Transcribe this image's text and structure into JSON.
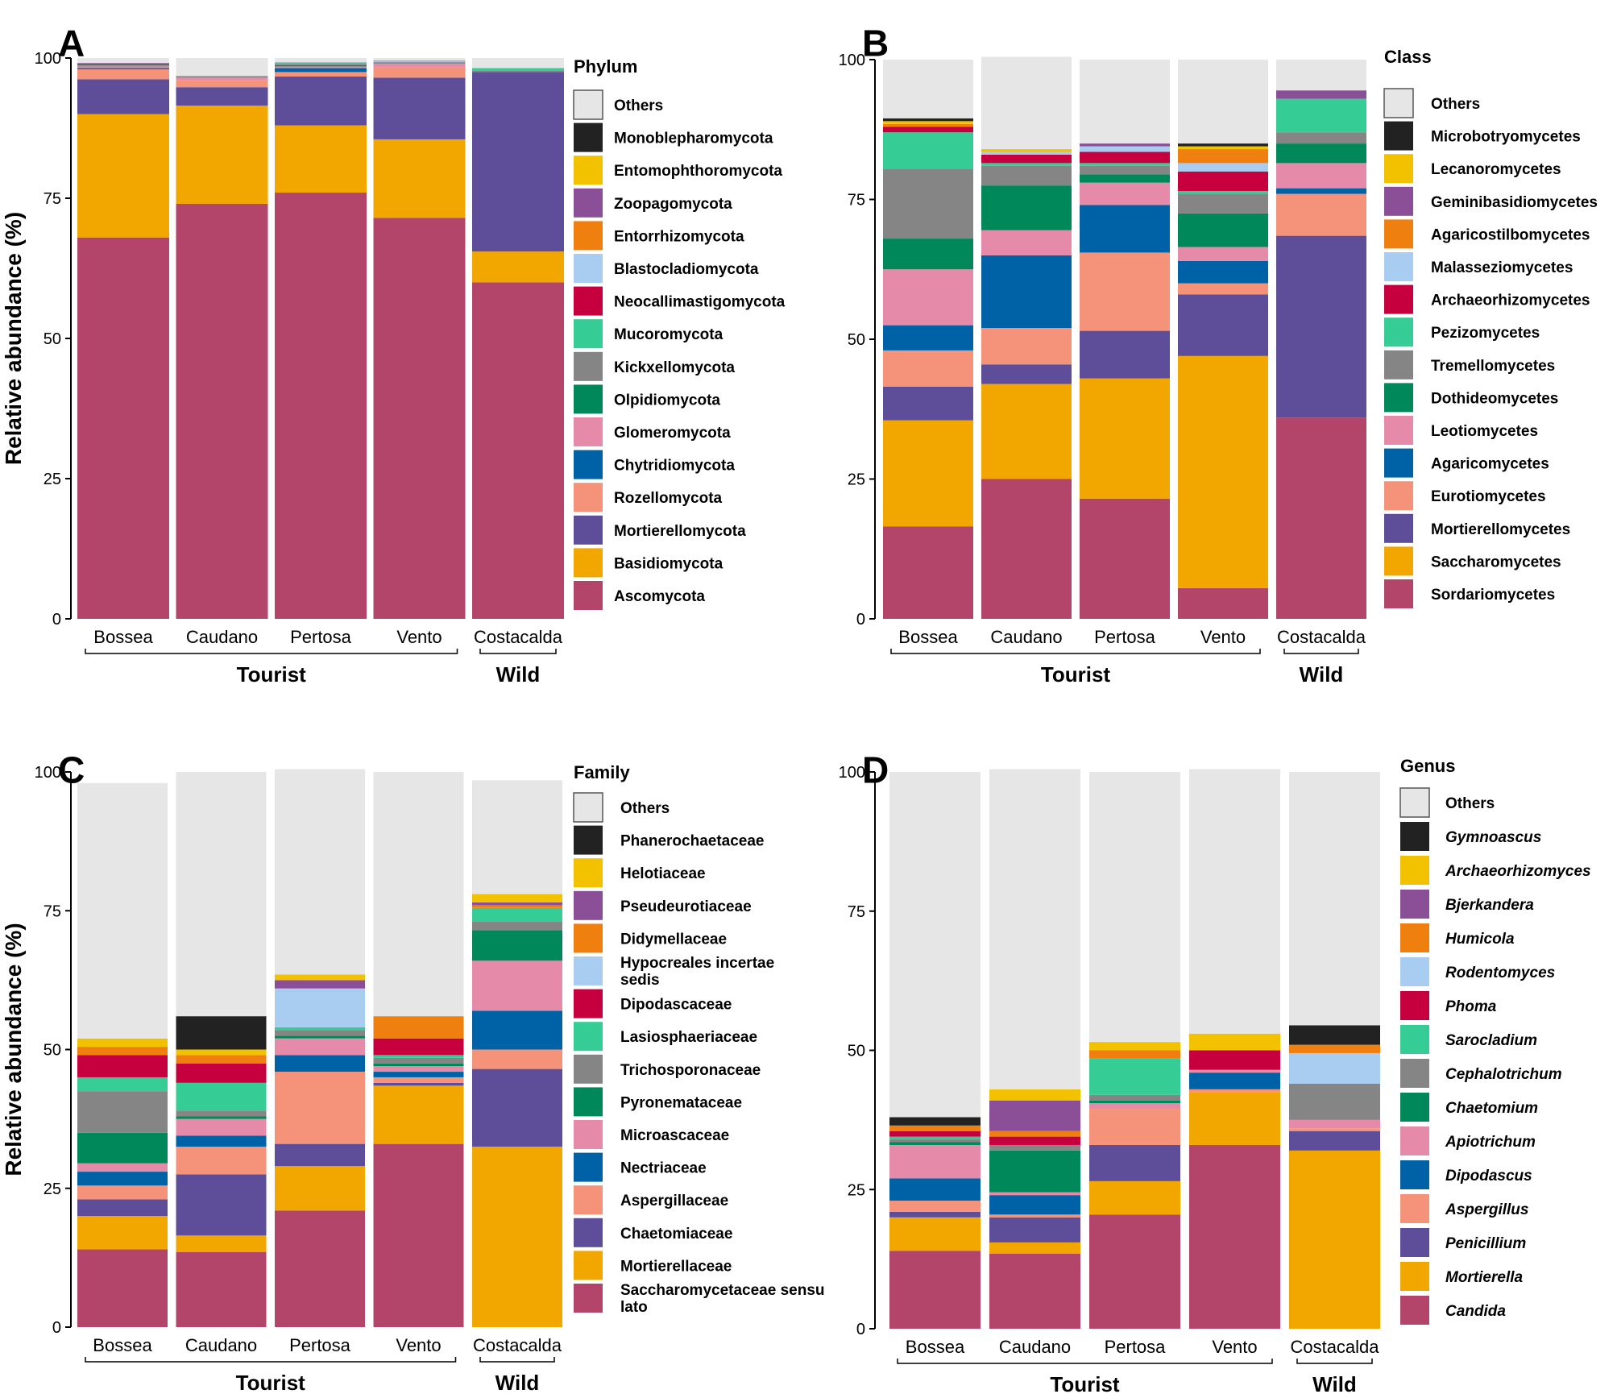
{
  "figure_description": "Relative abundance of fungal taxa in tourist and wild caves",
  "colors": {
    "Others": "#e6e6e6",
    "black": "#222222",
    "yellow": "#f2c200",
    "purple": "#8a4f96",
    "orange": "#ef8010",
    "lightblue": "#a8cdf0",
    "crimson": "#c6003e",
    "mint": "#36cc96",
    "gray": "#858585",
    "green": "#00875a",
    "pink": "#e58aa8",
    "blue": "#0062a6",
    "salmon": "#f5937a",
    "violet": "#5e4e9a",
    "gold": "#f2a600",
    "rose": "#b3456b"
  },
  "chart_data": [
    {
      "panel": "A",
      "type": "bar",
      "stacked": true,
      "categories": [
        "Bossea",
        "Caudano",
        "Pertosa",
        "Vento",
        "Costacalda"
      ],
      "groups": [
        {
          "name": "Tourist",
          "categories": [
            "Bossea",
            "Caudano",
            "Pertosa",
            "Vento"
          ]
        },
        {
          "name": "Wild",
          "categories": [
            "Costacalda"
          ]
        }
      ],
      "ylabel": "Relative abundance (%)",
      "ylim": [
        0,
        100
      ],
      "yticks": [
        0,
        25,
        50,
        75,
        100
      ],
      "legend_title": "Phylum",
      "legend_italic": false,
      "series": [
        {
          "name": "Ascomycota",
          "color": "rose",
          "values": [
            68,
            74,
            76,
            71.5,
            60
          ]
        },
        {
          "name": "Basidiomycota",
          "color": "gold",
          "values": [
            22,
            17.5,
            12,
            14,
            5.5
          ]
        },
        {
          "name": "Mortierellomycota",
          "color": "violet",
          "values": [
            6.2,
            3.3,
            8.7,
            11,
            32
          ]
        },
        {
          "name": "Rozellomycota",
          "color": "salmon",
          "values": [
            1.8,
            1.3,
            0.8,
            1.8,
            0
          ]
        },
        {
          "name": "Chytridiomycota",
          "color": "blue",
          "values": [
            0.2,
            0,
            0.7,
            0,
            0
          ]
        },
        {
          "name": "Glomeromycota",
          "color": "pink",
          "values": [
            0.3,
            0.4,
            0.3,
            0.7,
            0
          ]
        },
        {
          "name": "Olpidiomycota",
          "color": "green",
          "values": [
            0,
            0,
            0.2,
            0,
            0
          ]
        },
        {
          "name": "Kickxellomycota",
          "color": "gray",
          "values": [
            0.2,
            0.3,
            0.2,
            0.2,
            0.2
          ]
        },
        {
          "name": "Mucoromycota",
          "color": "mint",
          "values": [
            0.1,
            0,
            0.2,
            0.1,
            0.5
          ]
        },
        {
          "name": "Neocallimastigomycota",
          "color": "crimson",
          "values": [
            0.2,
            0,
            0,
            0,
            0
          ]
        },
        {
          "name": "Blastocladiomycota",
          "color": "lightblue",
          "values": [
            0,
            0,
            0,
            0.1,
            0
          ]
        },
        {
          "name": "Entorrhizomycota",
          "color": "orange",
          "values": [
            0,
            0,
            0,
            0,
            0
          ]
        },
        {
          "name": "Zoopagomycota",
          "color": "purple",
          "values": [
            0.1,
            0,
            0.1,
            0.1,
            0
          ]
        },
        {
          "name": "Entomophthoromycota",
          "color": "yellow",
          "values": [
            0,
            0,
            0,
            0,
            0
          ]
        },
        {
          "name": "Monoblepharomycota",
          "color": "black",
          "values": [
            0,
            0,
            0,
            0,
            0
          ]
        },
        {
          "name": "Others",
          "color": "Others",
          "values": [
            0.9,
            3.2,
            0.8,
            0.5,
            1.8
          ]
        }
      ]
    },
    {
      "panel": "B",
      "type": "bar",
      "stacked": true,
      "categories": [
        "Bossea",
        "Caudano",
        "Pertosa",
        "Vento",
        "Costacalda"
      ],
      "groups": [
        {
          "name": "Tourist",
          "categories": [
            "Bossea",
            "Caudano",
            "Pertosa",
            "Vento"
          ]
        },
        {
          "name": "Wild",
          "categories": [
            "Costacalda"
          ]
        }
      ],
      "ylabel": "",
      "ylim": [
        0,
        100
      ],
      "yticks": [
        0,
        25,
        50,
        75,
        100
      ],
      "legend_title": "Class",
      "legend_italic": false,
      "series": [
        {
          "name": "Sordariomycetes",
          "color": "rose",
          "values": [
            16.5,
            25,
            21.5,
            5.5,
            36
          ]
        },
        {
          "name": "Saccharomycetes",
          "color": "gold",
          "values": [
            19,
            17,
            21.5,
            41.5,
            0
          ]
        },
        {
          "name": "Mortierellomycetes",
          "color": "violet",
          "values": [
            6,
            3.5,
            8.5,
            11,
            32.5
          ]
        },
        {
          "name": "Eurotiomycetes",
          "color": "salmon",
          "values": [
            6.5,
            6.5,
            14,
            2,
            7.5
          ]
        },
        {
          "name": "Agaricomycetes",
          "color": "blue",
          "values": [
            4.5,
            13,
            8.5,
            4,
            1
          ]
        },
        {
          "name": "Leotiomycetes",
          "color": "pink",
          "values": [
            10,
            4.5,
            4,
            2.5,
            4.5
          ]
        },
        {
          "name": "Dothideomycetes",
          "color": "green",
          "values": [
            5.5,
            8,
            1.5,
            6,
            3.5
          ]
        },
        {
          "name": "Tremellomycetes",
          "color": "gray",
          "values": [
            12.5,
            3.5,
            1.5,
            3.5,
            2
          ]
        },
        {
          "name": "Pezizomycetes",
          "color": "mint",
          "values": [
            6.5,
            0.5,
            0.5,
            0.5,
            6
          ]
        },
        {
          "name": "Archaeorhizomycetes",
          "color": "crimson",
          "values": [
            1,
            1.5,
            2,
            3.5,
            0
          ]
        },
        {
          "name": "Malasseziomycetes",
          "color": "lightblue",
          "values": [
            0,
            0.5,
            1,
            1.5,
            0
          ]
        },
        {
          "name": "Agaricostilbomycetes",
          "color": "orange",
          "values": [
            0.5,
            0,
            0,
            2.5,
            0
          ]
        },
        {
          "name": "Geminibasidiomycetes",
          "color": "purple",
          "values": [
            0,
            0,
            0.5,
            0,
            1.5
          ]
        },
        {
          "name": "Lecanoromycetes",
          "color": "yellow",
          "values": [
            0.5,
            0.5,
            0,
            0.5,
            0
          ]
        },
        {
          "name": "Microbotryomycetes",
          "color": "black",
          "values": [
            0.5,
            0,
            0,
            0.5,
            0
          ]
        },
        {
          "name": "Others",
          "color": "Others",
          "values": [
            10.5,
            16.5,
            15,
            15,
            5.5
          ]
        }
      ]
    },
    {
      "panel": "C",
      "type": "bar",
      "stacked": true,
      "categories": [
        "Bossea",
        "Caudano",
        "Pertosa",
        "Vento",
        "Costacalda"
      ],
      "groups": [
        {
          "name": "Tourist",
          "categories": [
            "Bossea",
            "Caudano",
            "Pertosa",
            "Vento"
          ]
        },
        {
          "name": "Wild",
          "categories": [
            "Costacalda"
          ]
        }
      ],
      "ylabel": "Relative abundance (%)",
      "ylim": [
        0,
        100
      ],
      "yticks": [
        0,
        25,
        50,
        75,
        100
      ],
      "legend_title": "Family",
      "legend_italic": false,
      "series": [
        {
          "name": "Saccharomycetaceae sensu lato",
          "color": "rose",
          "values": [
            14,
            13.5,
            21,
            33,
            0
          ]
        },
        {
          "name": "Mortierellaceae",
          "color": "gold",
          "values": [
            6,
            3,
            8,
            10.5,
            32.5
          ]
        },
        {
          "name": "Chaetomiaceae",
          "color": "violet",
          "values": [
            3,
            11,
            4,
            0.5,
            14
          ]
        },
        {
          "name": "Aspergillaceae",
          "color": "salmon",
          "values": [
            2.5,
            5,
            13,
            1,
            3.5
          ]
        },
        {
          "name": "Nectriaceae",
          "color": "blue",
          "values": [
            2.5,
            2,
            3,
            1,
            7
          ]
        },
        {
          "name": "Microascaceae",
          "color": "pink",
          "values": [
            1.5,
            3,
            3,
            1,
            9
          ]
        },
        {
          "name": "Pyronemataceae",
          "color": "green",
          "values": [
            5.5,
            0.5,
            0.5,
            0.5,
            5.5
          ]
        },
        {
          "name": "Trichosporonaceae",
          "color": "gray",
          "values": [
            7.5,
            1,
            1,
            1,
            1.5
          ]
        },
        {
          "name": "Lasiosphaeriaceae",
          "color": "mint",
          "values": [
            2.5,
            5,
            0.5,
            0.5,
            2.5
          ]
        },
        {
          "name": "Dipodascaceae",
          "color": "crimson",
          "values": [
            4,
            3.5,
            0,
            3,
            0
          ]
        },
        {
          "name": "Hypocreales incertae sedis",
          "color": "lightblue",
          "values": [
            0,
            0,
            7,
            0,
            0
          ]
        },
        {
          "name": "Didymellaceae",
          "color": "orange",
          "values": [
            1.5,
            1.5,
            0,
            4,
            0.5
          ]
        },
        {
          "name": "Pseudeurotiaceae",
          "color": "purple",
          "values": [
            0,
            0,
            1.5,
            0,
            0.5
          ]
        },
        {
          "name": "Helotiaceae",
          "color": "yellow",
          "values": [
            1.5,
            1,
            1,
            0,
            1.5
          ]
        },
        {
          "name": "Phanerochaetaceae",
          "color": "black",
          "values": [
            0,
            6,
            0,
            0,
            0
          ]
        },
        {
          "name": "Others",
          "color": "Others",
          "values": [
            46,
            44,
            37,
            44,
            20.5
          ]
        }
      ]
    },
    {
      "panel": "D",
      "type": "bar",
      "stacked": true,
      "categories": [
        "Bossea",
        "Caudano",
        "Pertosa",
        "Vento",
        "Costacalda"
      ],
      "groups": [
        {
          "name": "Tourist",
          "categories": [
            "Bossea",
            "Caudano",
            "Pertosa",
            "Vento"
          ]
        },
        {
          "name": "Wild",
          "categories": [
            "Costacalda"
          ]
        }
      ],
      "ylabel": "",
      "ylim": [
        0,
        100
      ],
      "yticks": [
        0,
        25,
        50,
        75,
        100
      ],
      "legend_title": "Genus",
      "legend_italic": true,
      "series": [
        {
          "name": "Candida",
          "color": "rose",
          "values": [
            14,
            13.5,
            20.5,
            33,
            0
          ]
        },
        {
          "name": "Mortierella",
          "color": "gold",
          "values": [
            6,
            2,
            6,
            9.5,
            32
          ]
        },
        {
          "name": "Penicillium",
          "color": "violet",
          "values": [
            1,
            4.5,
            6.5,
            0,
            3.5
          ]
        },
        {
          "name": "Aspergillus",
          "color": "salmon",
          "values": [
            2,
            0.5,
            6.5,
            0.5,
            0.5
          ]
        },
        {
          "name": "Dipodascus",
          "color": "blue",
          "values": [
            4,
            3.5,
            0,
            3,
            0
          ]
        },
        {
          "name": "Apiotrichum",
          "color": "pink",
          "values": [
            6,
            0.5,
            1,
            0.5,
            1.5
          ]
        },
        {
          "name": "Chaetomium",
          "color": "green",
          "values": [
            0.5,
            7.5,
            0.5,
            0,
            0
          ]
        },
        {
          "name": "Cephalotrichum",
          "color": "gray",
          "values": [
            0.5,
            1,
            1,
            0,
            6.5
          ]
        },
        {
          "name": "Sarocladium",
          "color": "mint",
          "values": [
            0.5,
            0,
            6.5,
            0,
            0
          ]
        },
        {
          "name": "Phoma",
          "color": "crimson",
          "values": [
            1,
            1.5,
            0,
            3.5,
            0
          ]
        },
        {
          "name": "Rodentomyces",
          "color": "lightblue",
          "values": [
            0,
            0,
            0,
            0,
            5.5
          ]
        },
        {
          "name": "Humicola",
          "color": "orange",
          "values": [
            1,
            1,
            1.5,
            0,
            1.5
          ]
        },
        {
          "name": "Bjerkandera",
          "color": "purple",
          "values": [
            0,
            5.5,
            0,
            0,
            0
          ]
        },
        {
          "name": "Archaeorhizomyces",
          "color": "yellow",
          "values": [
            0,
            2,
            1.5,
            3,
            0
          ]
        },
        {
          "name": "Gymnoascus",
          "color": "black",
          "values": [
            1.5,
            0,
            0,
            0,
            3.5
          ]
        },
        {
          "name": "Others",
          "color": "Others",
          "values": [
            62,
            57.5,
            48.5,
            47.5,
            45.5
          ]
        }
      ]
    }
  ]
}
